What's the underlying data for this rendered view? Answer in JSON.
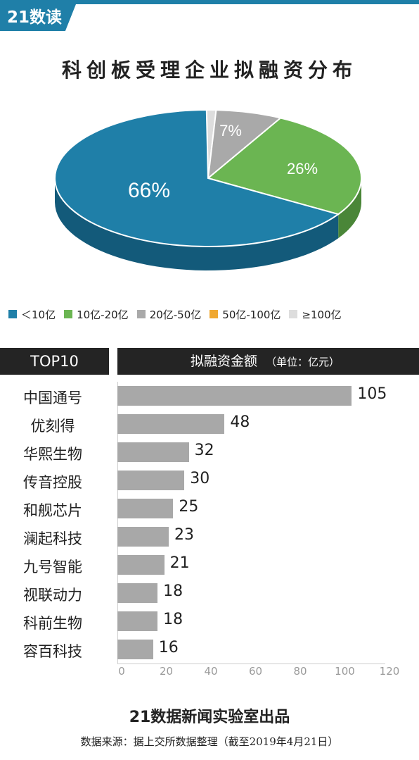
{
  "brand": "21数读",
  "legend_items": [
    {
      "label": "＜10亿",
      "color": "#1f7fa8"
    },
    {
      "label": "10亿-20亿",
      "color": "#6bb552"
    },
    {
      "label": "20亿-50亿",
      "color": "#a9a9a9"
    },
    {
      "label": "50亿-100亿",
      "color": "#f0a830"
    },
    {
      "label": "≥100亿",
      "color": "#dddddd"
    }
  ],
  "bar_header": {
    "left": "TOP10",
    "right": "拟融资金额",
    "unit": "（单位：亿元）"
  },
  "footer": {
    "title": "21数据新闻实验室出品",
    "source": "数据来源：据上交所数据整理（截至2019年4月21日）"
  },
  "chart_data": [
    {
      "type": "pie",
      "title": "科创板受理企业拟融资分布",
      "categories": [
        "＜10亿",
        "10亿-20亿",
        "20亿-50亿",
        "50亿-100亿",
        "≥100亿"
      ],
      "values": [
        66,
        26,
        7,
        0,
        1
      ],
      "value_labels": [
        "66%",
        "26%",
        "7%",
        "",
        ""
      ],
      "colors": [
        "#1f7fa8",
        "#6bb552",
        "#a9a9a9",
        "#f0a830",
        "#dddddd"
      ],
      "side_colors": [
        "#135a7a",
        "#4a8638",
        "#7e7e7e",
        "#b07a20",
        "#b5b5b5"
      ],
      "legend": "bottom"
    },
    {
      "type": "bar",
      "orientation": "horizontal",
      "categories": [
        "中国通号",
        "优刻得",
        "华熙生物",
        "传音控股",
        "和舰芯片",
        "澜起科技",
        "九号智能",
        "视联动力",
        "科前生物",
        "容百科技"
      ],
      "values": [
        105,
        48,
        32,
        30,
        25,
        23,
        21,
        18,
        18,
        16
      ],
      "value_labels": [
        "105",
        "48",
        "32",
        "30",
        "25",
        "23",
        "21",
        "18",
        "18",
        "16"
      ],
      "xlim": [
        0,
        120
      ],
      "xticks": [
        0,
        20,
        40,
        60,
        80,
        100,
        120
      ],
      "xtick_labels": [
        "0",
        "20",
        "40",
        "60",
        "80",
        "100",
        "120"
      ],
      "bar_color": "#a8a8a8",
      "grid": false
    }
  ]
}
